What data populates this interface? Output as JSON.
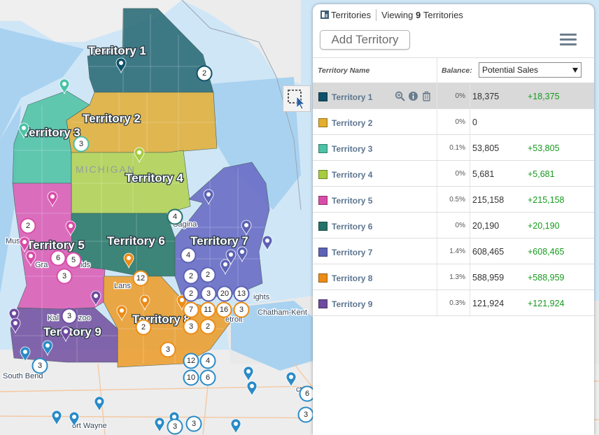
{
  "map": {
    "state_label": "MICHIGAN",
    "territory_labels": [
      "Territory 1",
      "Territory 2",
      "Territory 3",
      "Territory 4",
      "Territory 5",
      "Territory 6",
      "Territory 7",
      "Territory 8",
      "Territory 9"
    ],
    "cities": [
      "Sagina",
      "Mus",
      "Gra",
      "ids",
      "Lans",
      "Kal",
      "zoo",
      "etroit",
      "Chatham-Kent",
      "South Bend",
      "ort Wayne",
      "ights",
      "ct"
    ],
    "cluster_counts": [
      "2",
      "3",
      "4",
      "2",
      "6",
      "5",
      "3",
      "4",
      "2",
      "2",
      "12",
      "2",
      "3",
      "20",
      "13",
      "7",
      "11",
      "16",
      "3",
      "2",
      "3",
      "2",
      "3",
      "3",
      "3",
      "12",
      "4",
      "10",
      "6",
      "3",
      "6",
      "3",
      "3"
    ]
  },
  "panel": {
    "title": "Territories",
    "viewing_prefix": "Viewing",
    "viewing_count": "9",
    "viewing_suffix": "Territories",
    "add_button": "Add Territory",
    "col_name": "Territory Name",
    "col_balance": "Balance:",
    "balance_selected": "Potential Sales"
  },
  "territories": [
    {
      "name": "Territory 1",
      "pct": "0%",
      "value": "18,375",
      "change": "+18,375",
      "color": "#0f5168"
    },
    {
      "name": "Territory 2",
      "pct": "0%",
      "value": "0",
      "change": "",
      "color": "#e3ae2e"
    },
    {
      "name": "Territory 3",
      "pct": "0.1%",
      "value": "53,805",
      "change": "+53,805",
      "color": "#4cc2a6"
    },
    {
      "name": "Territory 4",
      "pct": "0%",
      "value": "5,681",
      "change": "+5,681",
      "color": "#a6cc3e"
    },
    {
      "name": "Territory 5",
      "pct": "0.5%",
      "value": "215,158",
      "change": "+215,158",
      "color": "#d94ca8"
    },
    {
      "name": "Territory 6",
      "pct": "0%",
      "value": "20,190",
      "change": "+20,190",
      "color": "#24726a"
    },
    {
      "name": "Territory 7",
      "pct": "1.4%",
      "value": "608,465",
      "change": "+608,465",
      "color": "#5c63b4"
    },
    {
      "name": "Territory 8",
      "pct": "1.3%",
      "value": "588,959",
      "change": "+588,959",
      "color": "#ec8c16"
    },
    {
      "name": "Territory 9",
      "pct": "0.3%",
      "value": "121,924",
      "change": "+121,924",
      "color": "#6d4a9f"
    }
  ],
  "icons": {
    "row_actions": [
      "zoom-icon",
      "info-icon",
      "trash-icon"
    ],
    "panel_title": "territories-icon",
    "select_tool": "lasso-select-icon",
    "menu": "hamburger-menu-icon"
  }
}
